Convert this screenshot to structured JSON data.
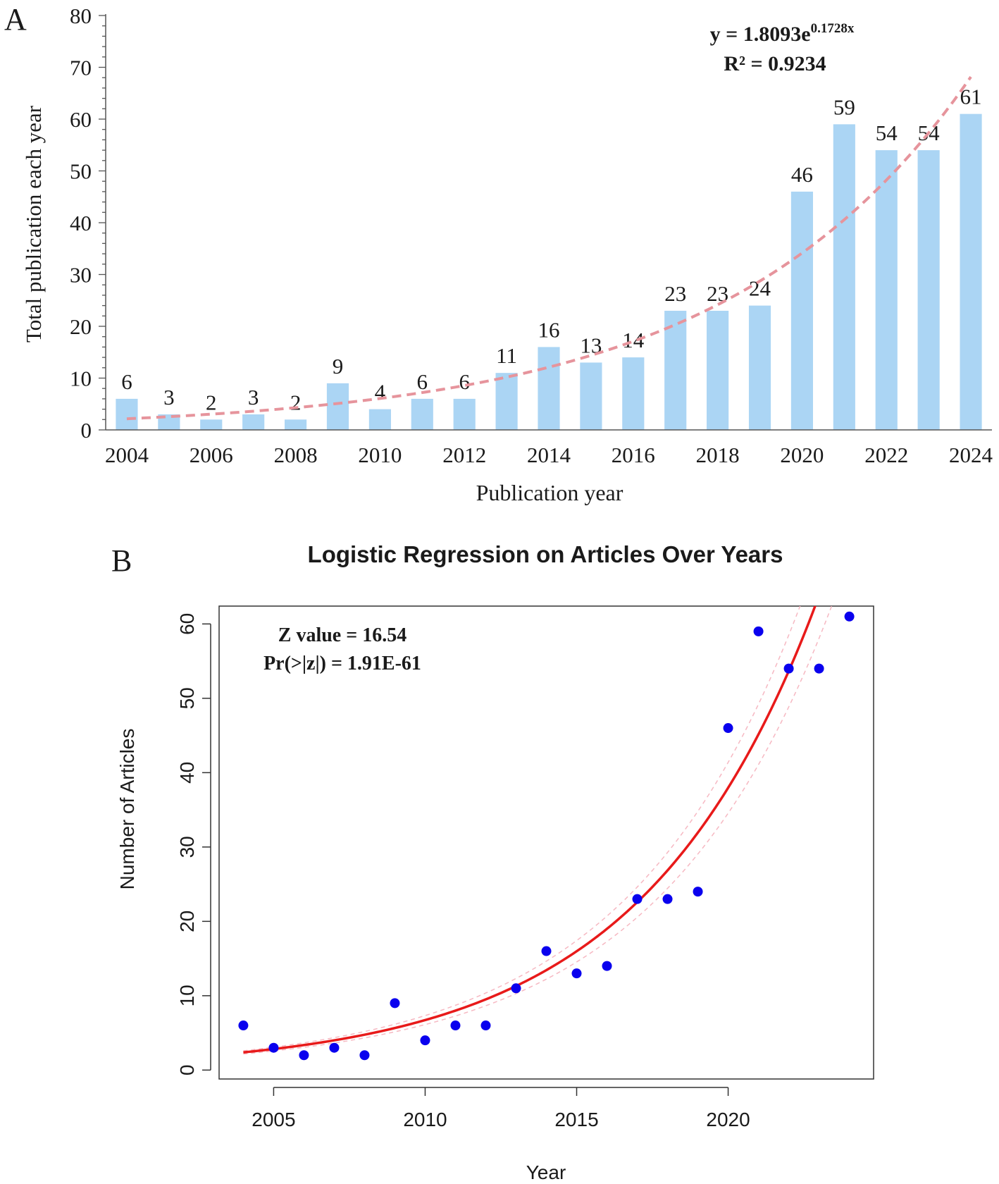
{
  "chart_data": [
    {
      "panel_label": "A",
      "type": "bar",
      "categories": [
        "2004",
        "2005",
        "2006",
        "2007",
        "2008",
        "2009",
        "2010",
        "2011",
        "2012",
        "2013",
        "2014",
        "2015",
        "2016",
        "2017",
        "2018",
        "2019",
        "2020",
        "2021",
        "2022",
        "2023",
        "2024"
      ],
      "values": [
        6,
        3,
        2,
        3,
        2,
        9,
        4,
        6,
        6,
        11,
        16,
        13,
        14,
        23,
        23,
        24,
        46,
        59,
        54,
        54,
        61
      ],
      "data_labels": [
        "6",
        "3",
        "2",
        "3",
        "2",
        "9",
        "4",
        "6",
        "6",
        "11",
        "16",
        "13",
        "14",
        "23",
        "23",
        "24",
        "46",
        "59",
        "54",
        "54",
        "61"
      ],
      "xtick_labels": [
        "2004",
        "2006",
        "2008",
        "2010",
        "2012",
        "2014",
        "2016",
        "2018",
        "2020",
        "2022",
        "2024"
      ],
      "ytick_labels": [
        "0",
        "10",
        "20",
        "30",
        "40",
        "50",
        "60",
        "70",
        "80"
      ],
      "xlabel": "Publication year",
      "ylabel": "Total publication each year",
      "ylim": [
        0,
        80
      ],
      "trendline": {
        "type": "exponential",
        "a": 1.8093,
        "b": 0.1728,
        "equation_prefix": "y = 1.8093e",
        "equation_exponent": "0.1728x",
        "r_squared": "R² = 0.9234"
      },
      "colors": {
        "bar": "#abd5f4",
        "trend": "#e6949c"
      }
    },
    {
      "panel_label": "B",
      "type": "scatter",
      "title": "Logistic Regression on Articles Over Years",
      "x": [
        2004,
        2005,
        2006,
        2007,
        2008,
        2009,
        2010,
        2011,
        2012,
        2013,
        2014,
        2015,
        2016,
        2017,
        2018,
        2019,
        2020,
        2021,
        2022,
        2023,
        2024
      ],
      "y": [
        6,
        3,
        2,
        3,
        2,
        9,
        4,
        6,
        6,
        11,
        16,
        13,
        14,
        23,
        23,
        24,
        46,
        59,
        54,
        54,
        61
      ],
      "xtick_labels": [
        "2005",
        "2010",
        "2015",
        "2020"
      ],
      "ytick_labels": [
        "0",
        "10",
        "20",
        "30",
        "40",
        "50",
        "60"
      ],
      "xlabel": "Year",
      "ylabel": "Number of Articles",
      "xlim": [
        2003.2,
        2024.8
      ],
      "ylim": [
        -1.2,
        62.4
      ],
      "fit_curve": {
        "type": "exponential",
        "a": 2.38,
        "b": 0.1731,
        "x0": 2004,
        "ci_factor": 0.09
      },
      "annotation_z": "Z value = 16.54",
      "annotation_p": "Pr(>|z|) = 1.91E-61",
      "colors": {
        "point": "#0a00ee",
        "fit": "#e81a1a",
        "ci": "#f6b8c2"
      }
    }
  ]
}
